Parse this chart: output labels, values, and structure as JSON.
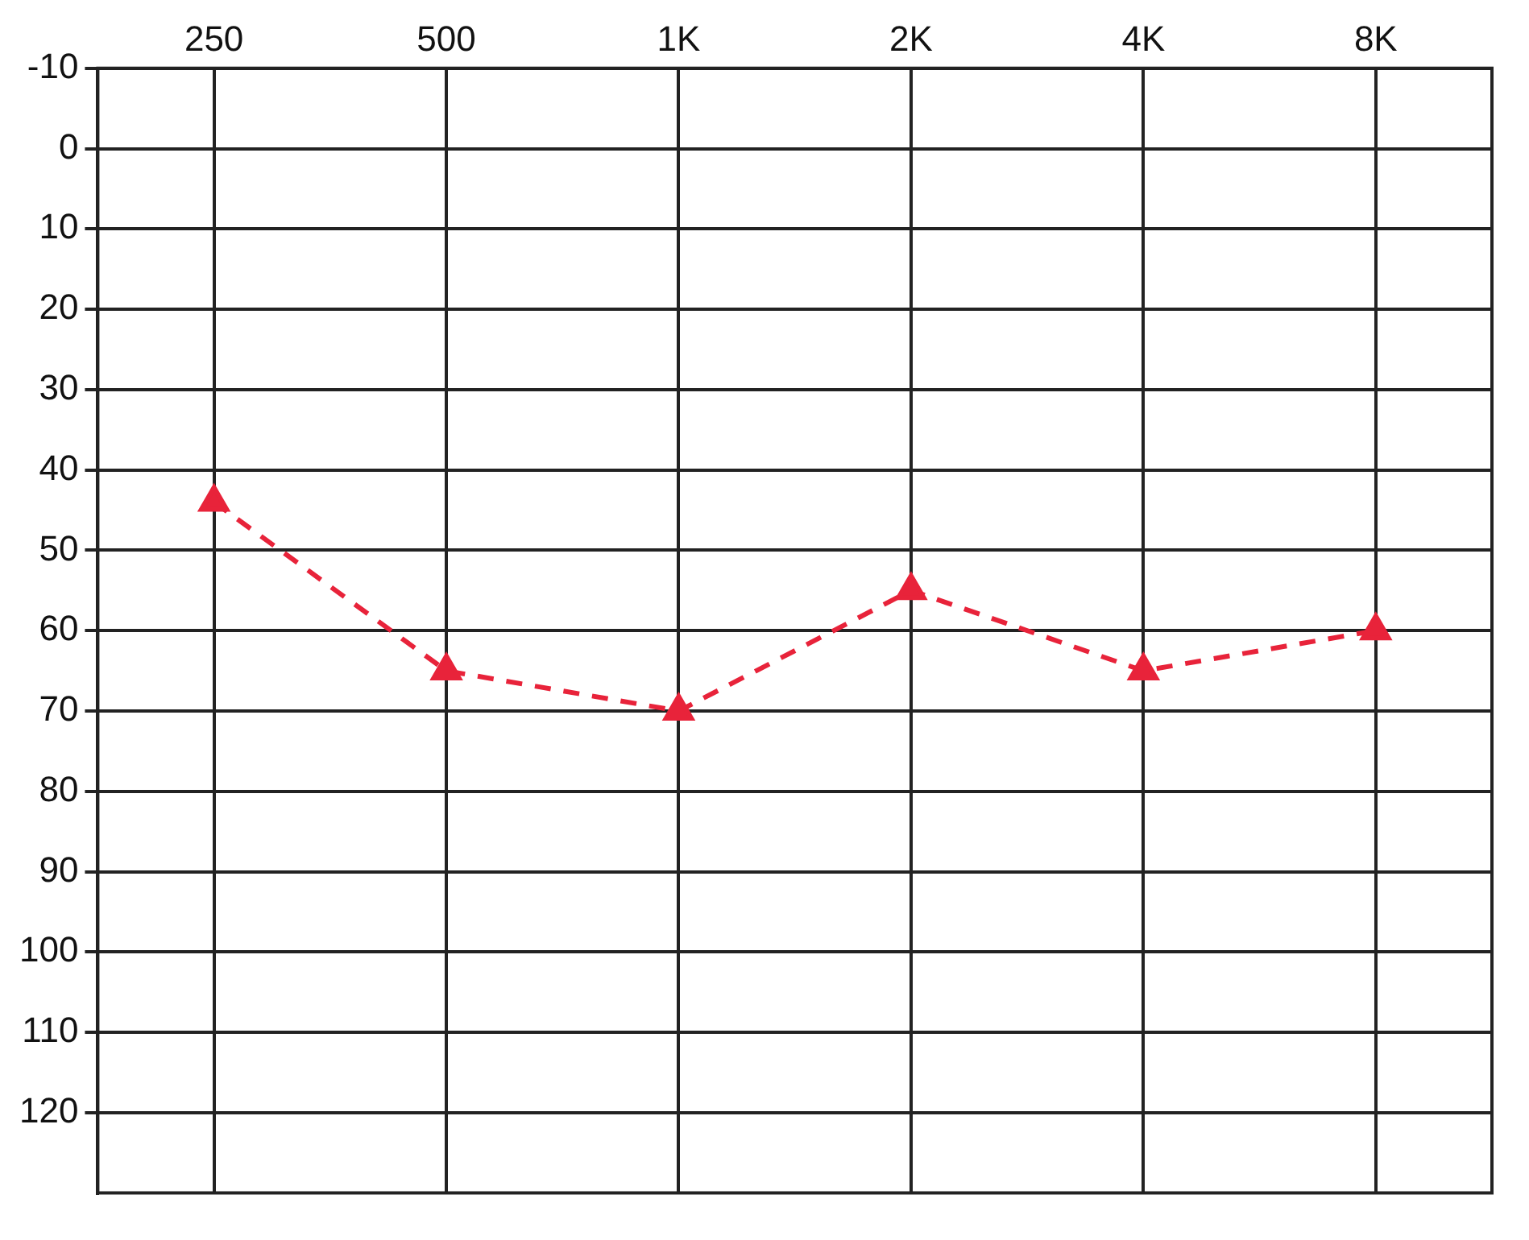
{
  "chart_data": {
    "type": "line",
    "categories": [
      "250",
      "500",
      "1K",
      "2K",
      "4K",
      "8K"
    ],
    "series": [
      {
        "color": "#e8233a",
        "values": [
          44,
          65,
          70,
          55,
          65,
          60
        ]
      }
    ],
    "ylim": [
      130,
      -10
    ],
    "yticks": [
      -10,
      0,
      10,
      20,
      30,
      40,
      50,
      60,
      70,
      80,
      90,
      100,
      110,
      120
    ],
    "grid": true,
    "marker": "triangle",
    "line_style": "dashed",
    "legend": false
  }
}
